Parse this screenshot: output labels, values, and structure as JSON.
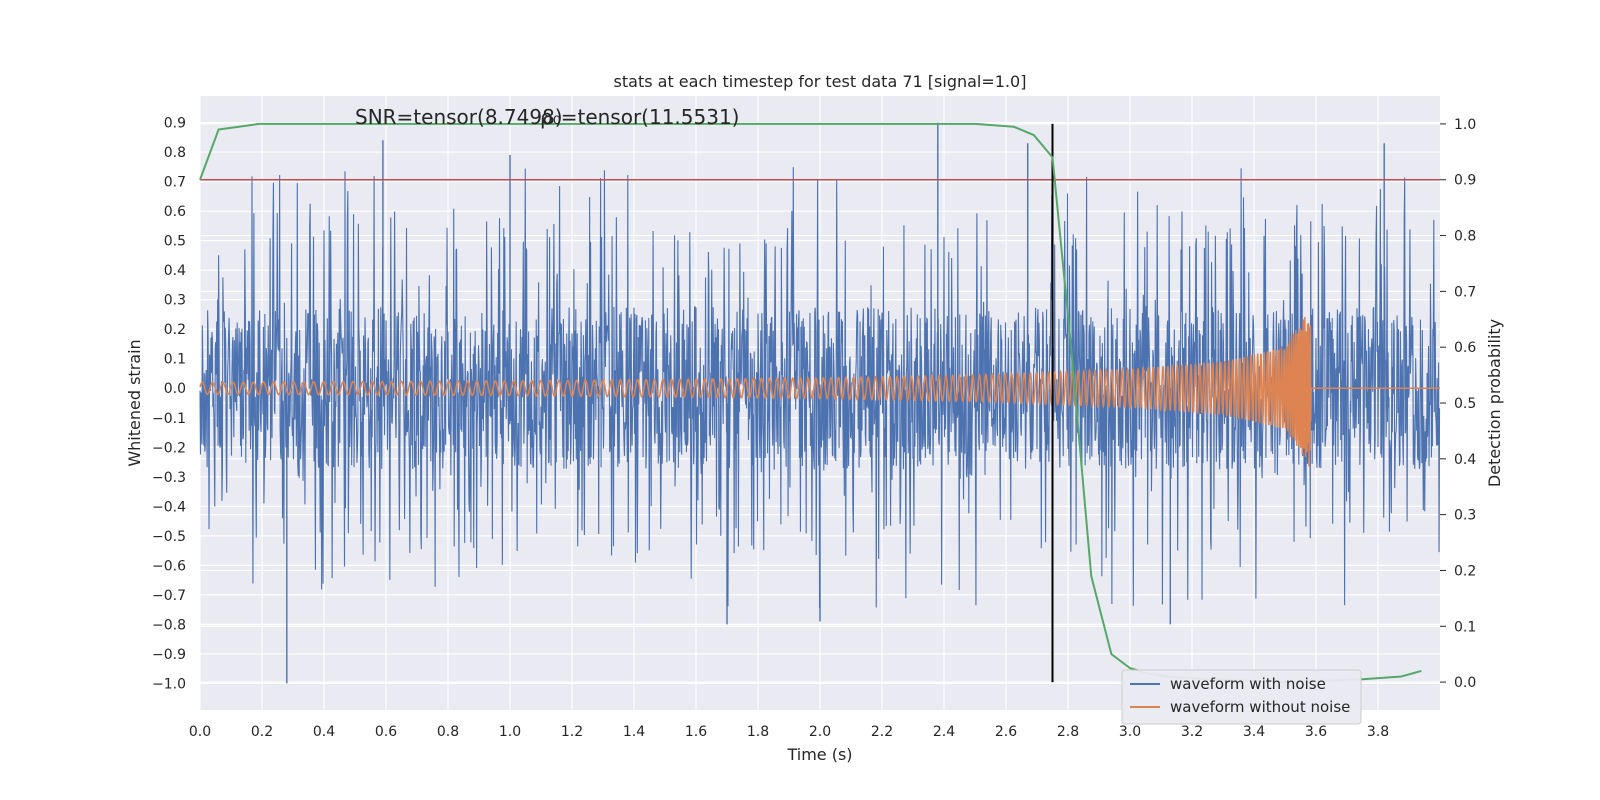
{
  "chart_data": {
    "type": "line",
    "title": "stats at each timestep for test data 71 [signal=1.0]",
    "xlabel": "Time (s)",
    "ylabel_left": "Whitened strain",
    "ylabel_right": "Detection probability",
    "xlim": [
      0.0,
      4.0
    ],
    "ylim_left": [
      -1.09,
      0.99
    ],
    "ylim_right": [
      -0.05,
      1.05
    ],
    "xticks": [
      "0.0",
      "0.2",
      "0.4",
      "0.6",
      "0.8",
      "1.0",
      "1.2",
      "1.4",
      "1.6",
      "1.8",
      "2.0",
      "2.2",
      "2.4",
      "2.6",
      "2.8",
      "3.0",
      "3.2",
      "3.4",
      "3.6",
      "3.8"
    ],
    "yticks_left": [
      "0.9",
      "0.8",
      "0.7",
      "0.6",
      "0.5",
      "0.4",
      "0.3",
      "0.2",
      "0.1",
      "0.0",
      "−0.1",
      "−0.2",
      "−0.3",
      "−0.4",
      "−0.5",
      "−0.6",
      "−0.7",
      "−0.8",
      "−0.9",
      "−1.0"
    ],
    "yticks_right": [
      "1.0",
      "0.9",
      "0.8",
      "0.7",
      "0.6",
      "0.5",
      "0.4",
      "0.3",
      "0.2",
      "0.1",
      "0.0"
    ],
    "grid": true,
    "legend_placement": "lower-right",
    "annotations": [
      {
        "text": "SNR=tensor(8.7498)",
        "x": 0.5,
        "y": 0.9
      },
      {
        "text": "ρ₀=tensor(11.5531)",
        "x": 1.1,
        "y": 0.9
      }
    ],
    "marker_time": 2.75,
    "threshold": 0.9,
    "colors": {
      "noisy": "#4c72b0",
      "clean": "#dd8452",
      "probability": "#55a868",
      "threshold": "#c44e52",
      "marker": "#000000",
      "background": "#eaeaf2",
      "grid": "#ffffff"
    },
    "series": [
      {
        "name": "waveform with noise",
        "axis": "left",
        "description_points": {
          "x": [
            0.28,
            0.59,
            1.0,
            2.38,
            2.67,
            3.82,
            1.7,
            2.0,
            3.13
          ],
          "y": [
            -1.0,
            0.84,
            0.79,
            0.9,
            0.83,
            0.83,
            -0.8,
            -0.79,
            -0.8
          ]
        }
      },
      {
        "name": "waveform without noise",
        "axis": "left",
        "envelope": {
          "t": [
            0.0,
            1.0,
            2.0,
            2.5,
            3.0,
            3.3,
            3.5,
            3.58,
            3.59,
            4.0
          ],
          "amp": [
            0.02,
            0.025,
            0.035,
            0.045,
            0.065,
            0.09,
            0.14,
            0.27,
            0.0,
            0.0
          ]
        }
      },
      {
        "name": "detection probability",
        "axis": "right",
        "x": [
          0.0,
          0.06,
          0.125,
          0.19,
          0.25,
          0.5,
          1.0,
          1.5,
          2.0,
          2.5,
          2.625,
          2.69,
          2.75,
          2.81,
          2.875,
          2.94,
          3.0,
          3.06,
          3.125,
          3.25,
          3.5,
          3.75,
          3.875,
          3.94
        ],
        "y": [
          0.9,
          0.99,
          0.995,
          1.0,
          1.0,
          1.0,
          1.0,
          1.0,
          1.0,
          1.0,
          0.995,
          0.98,
          0.94,
          0.6,
          0.19,
          0.05,
          0.025,
          0.015,
          0.01,
          0.005,
          0.0,
          0.005,
          0.01,
          0.02
        ]
      }
    ]
  }
}
